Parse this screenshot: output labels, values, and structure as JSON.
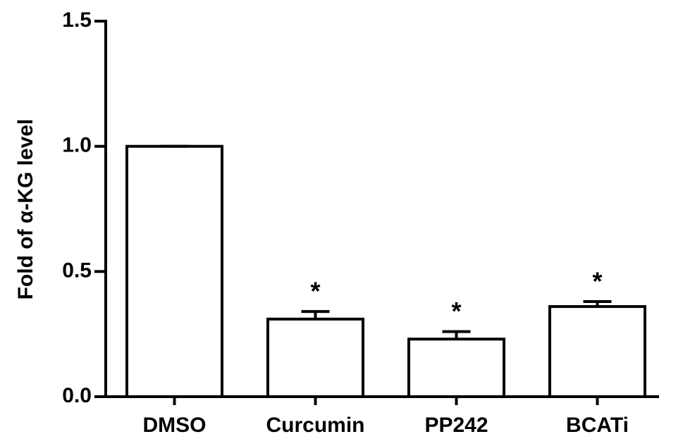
{
  "chart_data": {
    "type": "bar",
    "y_label": "Fold of α-KG level",
    "categories": [
      "DMSO",
      "Curcumin",
      "PP242",
      "BCATi"
    ],
    "values": [
      1.0,
      0.31,
      0.23,
      0.36
    ],
    "errors": [
      0,
      0.03,
      0.03,
      0.02
    ],
    "annotations": [
      null,
      "*",
      "*",
      "*"
    ],
    "color": "#ffffff",
    "ylim": [
      0,
      1.5
    ],
    "yticks": [
      {
        "value": 0,
        "label": "0.0"
      },
      0.5,
      {
        "value": 1,
        "label": "1.0"
      },
      1.5
    ]
  }
}
